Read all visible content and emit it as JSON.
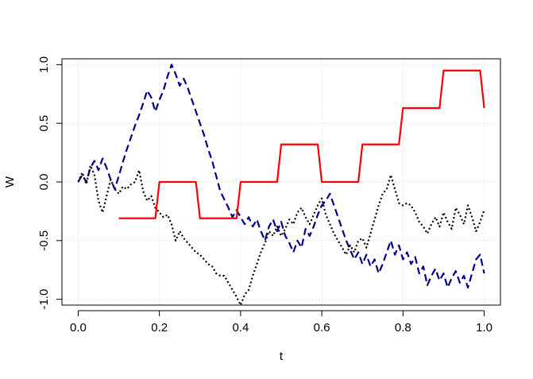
{
  "chart_data": {
    "type": "line",
    "xlabel": "t",
    "ylabel": "W",
    "xlim": [
      -0.04,
      1.04
    ],
    "ylim": [
      -1.05,
      1.05
    ],
    "x_ticks": [
      0.0,
      0.2,
      0.4,
      0.6,
      0.8,
      1.0
    ],
    "x_tick_labels": [
      "0.0",
      "0.2",
      "0.4",
      "0.6",
      "0.8",
      "1.0"
    ],
    "y_ticks": [
      -1.0,
      -0.5,
      0.0,
      0.5,
      1.0
    ],
    "y_tick_labels": [
      "-1.0",
      "-0.5",
      "0.0",
      "0.5",
      "1.0"
    ],
    "grid": true,
    "box": true,
    "series": [
      {
        "color": "#00008B",
        "style": "dashed",
        "x": [
          0.0,
          0.01,
          0.02,
          0.03,
          0.04,
          0.05,
          0.06,
          0.07,
          0.08,
          0.09,
          0.1,
          0.11,
          0.12,
          0.13,
          0.14,
          0.15,
          0.16,
          0.17,
          0.18,
          0.19,
          0.2,
          0.21,
          0.22,
          0.23,
          0.24,
          0.25,
          0.26,
          0.27,
          0.28,
          0.29,
          0.3,
          0.31,
          0.32,
          0.33,
          0.34,
          0.35,
          0.36,
          0.37,
          0.38,
          0.39,
          0.4,
          0.41,
          0.42,
          0.43,
          0.44,
          0.45,
          0.46,
          0.47,
          0.48,
          0.49,
          0.5,
          0.51,
          0.52,
          0.53,
          0.54,
          0.55,
          0.56,
          0.57,
          0.58,
          0.59,
          0.6,
          0.61,
          0.62,
          0.63,
          0.64,
          0.65,
          0.66,
          0.67,
          0.68,
          0.69,
          0.7,
          0.71,
          0.72,
          0.73,
          0.74,
          0.75,
          0.76,
          0.77,
          0.78,
          0.79,
          0.8,
          0.81,
          0.82,
          0.83,
          0.84,
          0.85,
          0.86,
          0.87,
          0.88,
          0.89,
          0.9,
          0.91,
          0.92,
          0.93,
          0.94,
          0.95,
          0.96,
          0.97,
          0.98,
          0.99,
          1.0
        ],
        "y": [
          0.0,
          0.06,
          0.0,
          0.12,
          0.18,
          0.1,
          0.2,
          0.12,
          0.02,
          -0.06,
          0.05,
          0.17,
          0.28,
          0.38,
          0.48,
          0.57,
          0.67,
          0.78,
          0.72,
          0.6,
          0.7,
          0.78,
          0.9,
          1.0,
          0.92,
          0.82,
          0.88,
          0.8,
          0.7,
          0.6,
          0.5,
          0.4,
          0.28,
          0.18,
          0.05,
          -0.08,
          -0.15,
          -0.22,
          -0.3,
          -0.24,
          -0.3,
          -0.36,
          -0.3,
          -0.38,
          -0.32,
          -0.42,
          -0.5,
          -0.38,
          -0.32,
          -0.42,
          -0.34,
          -0.46,
          -0.52,
          -0.6,
          -0.5,
          -0.56,
          -0.4,
          -0.46,
          -0.38,
          -0.28,
          -0.2,
          -0.16,
          -0.1,
          -0.2,
          -0.3,
          -0.4,
          -0.5,
          -0.58,
          -0.66,
          -0.6,
          -0.7,
          -0.62,
          -0.72,
          -0.66,
          -0.78,
          -0.7,
          -0.6,
          -0.5,
          -0.62,
          -0.54,
          -0.66,
          -0.6,
          -0.7,
          -0.64,
          -0.78,
          -0.72,
          -0.88,
          -0.8,
          -0.74,
          -0.84,
          -0.78,
          -0.9,
          -0.82,
          -0.76,
          -0.86,
          -0.8,
          -0.9,
          -0.78,
          -0.66,
          -0.62,
          -0.78
        ]
      },
      {
        "color": "#000000",
        "style": "dotted",
        "x": [
          0.0,
          0.01,
          0.02,
          0.03,
          0.04,
          0.05,
          0.06,
          0.07,
          0.08,
          0.09,
          0.1,
          0.11,
          0.12,
          0.13,
          0.14,
          0.15,
          0.16,
          0.17,
          0.18,
          0.19,
          0.2,
          0.21,
          0.22,
          0.23,
          0.24,
          0.25,
          0.26,
          0.27,
          0.28,
          0.29,
          0.3,
          0.31,
          0.32,
          0.33,
          0.34,
          0.35,
          0.36,
          0.37,
          0.38,
          0.39,
          0.4,
          0.41,
          0.42,
          0.43,
          0.44,
          0.45,
          0.46,
          0.47,
          0.48,
          0.49,
          0.5,
          0.51,
          0.52,
          0.53,
          0.54,
          0.55,
          0.56,
          0.57,
          0.58,
          0.59,
          0.6,
          0.61,
          0.62,
          0.63,
          0.64,
          0.65,
          0.66,
          0.67,
          0.68,
          0.69,
          0.7,
          0.71,
          0.72,
          0.73,
          0.74,
          0.75,
          0.76,
          0.77,
          0.78,
          0.79,
          0.8,
          0.81,
          0.82,
          0.83,
          0.84,
          0.85,
          0.86,
          0.87,
          0.88,
          0.89,
          0.9,
          0.91,
          0.92,
          0.93,
          0.94,
          0.95,
          0.96,
          0.97,
          0.98,
          0.99,
          1.0
        ],
        "y": [
          0.0,
          0.08,
          -0.02,
          0.14,
          0.06,
          -0.16,
          -0.26,
          -0.12,
          0.02,
          -0.06,
          -0.1,
          -0.04,
          -0.06,
          -0.02,
          0.0,
          0.1,
          -0.08,
          -0.16,
          -0.12,
          -0.22,
          -0.26,
          -0.3,
          -0.28,
          -0.36,
          -0.5,
          -0.42,
          -0.48,
          -0.52,
          -0.56,
          -0.6,
          -0.62,
          -0.66,
          -0.7,
          -0.72,
          -0.78,
          -0.8,
          -0.8,
          -0.86,
          -0.92,
          -0.98,
          -1.05,
          -0.96,
          -0.92,
          -0.8,
          -0.7,
          -0.6,
          -0.52,
          -0.42,
          -0.46,
          -0.38,
          -0.46,
          -0.4,
          -0.32,
          -0.36,
          -0.26,
          -0.22,
          -0.3,
          -0.36,
          -0.28,
          -0.2,
          -0.14,
          -0.28,
          -0.36,
          -0.44,
          -0.5,
          -0.56,
          -0.62,
          -0.54,
          -0.6,
          -0.5,
          -0.48,
          -0.56,
          -0.44,
          -0.32,
          -0.2,
          -0.1,
          -0.06,
          0.06,
          -0.06,
          -0.18,
          -0.2,
          -0.18,
          -0.2,
          -0.26,
          -0.34,
          -0.38,
          -0.44,
          -0.36,
          -0.3,
          -0.38,
          -0.26,
          -0.34,
          -0.4,
          -0.22,
          -0.28,
          -0.36,
          -0.2,
          -0.3,
          -0.42,
          -0.34,
          -0.24
        ]
      },
      {
        "color": "#FF0000",
        "style": "solid",
        "x": [
          0.1,
          0.19,
          0.2,
          0.29,
          0.3,
          0.39,
          0.4,
          0.49,
          0.5,
          0.59,
          0.6,
          0.69,
          0.7,
          0.79,
          0.8,
          0.89,
          0.9,
          0.99,
          1.0
        ],
        "y": [
          -0.31,
          -0.31,
          0.0,
          0.0,
          -0.31,
          -0.31,
          0.0,
          0.0,
          0.32,
          0.32,
          0.0,
          0.0,
          0.32,
          0.32,
          0.63,
          0.63,
          0.95,
          0.95,
          0.63
        ]
      }
    ]
  }
}
